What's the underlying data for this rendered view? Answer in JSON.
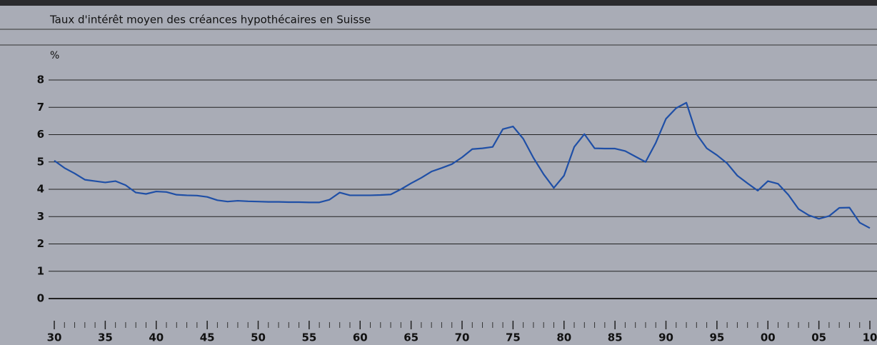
{
  "chart_data": {
    "type": "line",
    "title": "Taux d'intérêt moyen des créances hypothécaires en Suisse",
    "y_label": "%",
    "x": [
      1930,
      1931,
      1932,
      1933,
      1934,
      1935,
      1936,
      1937,
      1938,
      1939,
      1940,
      1941,
      1942,
      1943,
      1944,
      1945,
      1946,
      1947,
      1948,
      1949,
      1950,
      1951,
      1952,
      1953,
      1954,
      1955,
      1956,
      1957,
      1958,
      1959,
      1960,
      1961,
      1962,
      1963,
      1964,
      1965,
      1966,
      1967,
      1968,
      1969,
      1970,
      1971,
      1972,
      1973,
      1974,
      1975,
      1976,
      1977,
      1978,
      1979,
      1980,
      1981,
      1982,
      1983,
      1984,
      1985,
      1986,
      1987,
      1988,
      1989,
      1990,
      1991,
      1992,
      1993,
      1994,
      1995,
      1996,
      1997,
      1998,
      1999,
      2000,
      2001,
      2002,
      2003,
      2004,
      2005,
      2006,
      2007,
      2008,
      2009,
      2010
    ],
    "values": [
      5.05,
      4.78,
      4.58,
      4.35,
      4.3,
      4.25,
      4.3,
      4.15,
      3.88,
      3.83,
      3.92,
      3.9,
      3.8,
      3.78,
      3.77,
      3.72,
      3.6,
      3.55,
      3.58,
      3.56,
      3.55,
      3.54,
      3.54,
      3.53,
      3.53,
      3.52,
      3.52,
      3.62,
      3.88,
      3.78,
      3.78,
      3.78,
      3.79,
      3.81,
      4.0,
      4.22,
      4.42,
      4.65,
      4.78,
      4.92,
      5.17,
      5.47,
      5.5,
      5.55,
      6.2,
      6.3,
      5.85,
      5.15,
      4.55,
      4.05,
      4.5,
      5.55,
      6.02,
      5.5,
      5.49,
      5.49,
      5.4,
      5.2,
      5.0,
      5.7,
      6.58,
      6.97,
      7.17,
      6.02,
      5.5,
      5.25,
      4.95,
      4.5,
      4.22,
      3.95,
      4.3,
      4.2,
      3.8,
      3.28,
      3.05,
      2.92,
      3.02,
      3.32,
      3.33,
      2.78,
      2.58
    ],
    "color": "#1f4fa6",
    "xlim": [
      1930,
      2010
    ],
    "xticks": [
      {
        "value": 1930,
        "label": "30"
      },
      {
        "value": 1935,
        "label": "35"
      },
      {
        "value": 1940,
        "label": "40"
      },
      {
        "value": 1945,
        "label": "45"
      },
      {
        "value": 1950,
        "label": "50"
      },
      {
        "value": 1955,
        "label": "55"
      },
      {
        "value": 1960,
        "label": "60"
      },
      {
        "value": 1965,
        "label": "65"
      },
      {
        "value": 1970,
        "label": "70"
      },
      {
        "value": 1975,
        "label": "75"
      },
      {
        "value": 1980,
        "label": "80"
      },
      {
        "value": 1985,
        "label": "85"
      },
      {
        "value": 1990,
        "label": "90"
      },
      {
        "value": 1995,
        "label": "95"
      },
      {
        "value": 2000,
        "label": "00"
      },
      {
        "value": 2005,
        "label": "05"
      },
      {
        "value": 2010,
        "label": "10"
      }
    ],
    "ylim": [
      0,
      8
    ],
    "yticks": [
      0,
      1,
      2,
      3,
      4,
      5,
      6,
      7,
      8
    ],
    "grid": true
  }
}
